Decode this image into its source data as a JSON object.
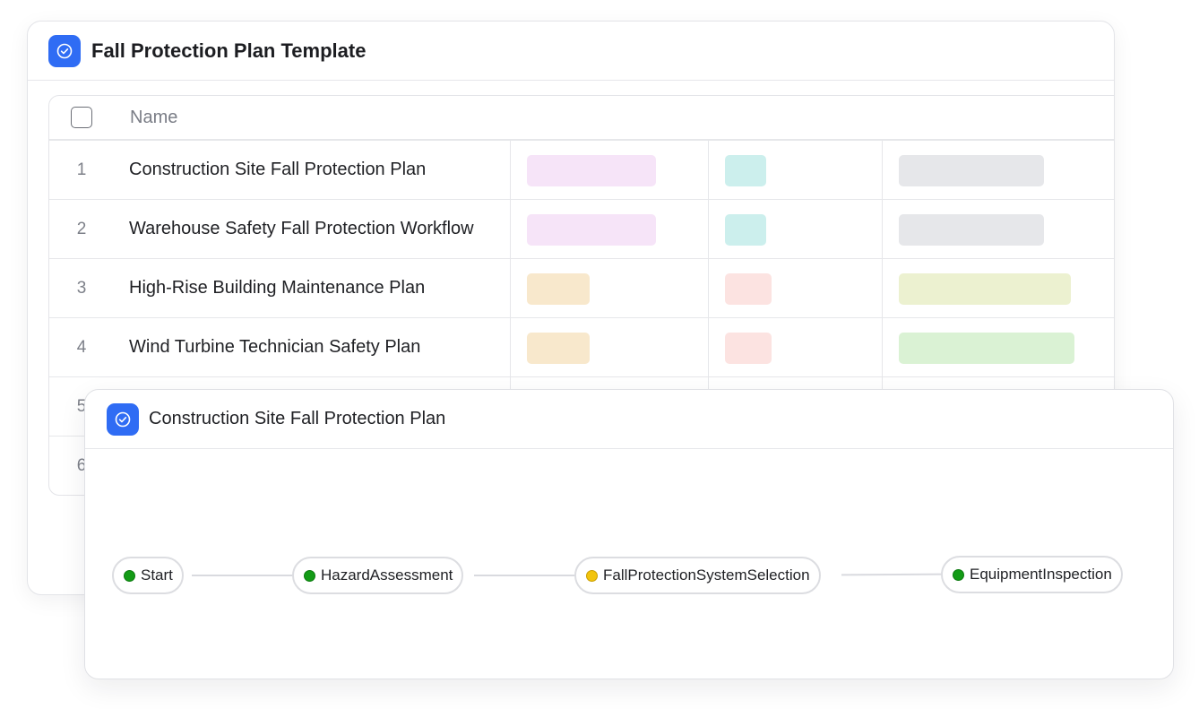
{
  "templates_panel": {
    "title": "Fall Protection Plan Template",
    "icon": "check-circle-icon",
    "column_header": "Name",
    "rows": [
      {
        "num": "1",
        "name": "Construction Site Fall Protection Plan"
      },
      {
        "num": "2",
        "name": "Warehouse Safety Fall Protection Workflow"
      },
      {
        "num": "3",
        "name": "High-Rise Building Maintenance Plan"
      },
      {
        "num": "4",
        "name": "Wind Turbine Technician Safety Plan"
      },
      {
        "num": "5",
        "name": ""
      },
      {
        "num": "6",
        "name": ""
      }
    ]
  },
  "workflow_panel": {
    "title": "Construction Site Fall Protection Plan",
    "icon": "check-circle-icon",
    "nodes": [
      {
        "label": "Start",
        "status": "green"
      },
      {
        "label": "HazardAssessment",
        "status": "green"
      },
      {
        "label": "FallProtectionSystemSelection",
        "status": "yellow"
      },
      {
        "label": "EquipmentInspection",
        "status": "green"
      }
    ]
  },
  "colors": {
    "accent": "#2f6cf4",
    "status_green": "#139b16",
    "status_yellow": "#f2c40d",
    "tag_pink": "#f6e4f8",
    "tag_teal": "#ccefed",
    "tag_gray": "#e6e7ea",
    "tag_orange": "#f8e8cc",
    "tag_red": "#fce3e1",
    "tag_olive": "#ecf1d0",
    "tag_green": "#daf2d4"
  }
}
